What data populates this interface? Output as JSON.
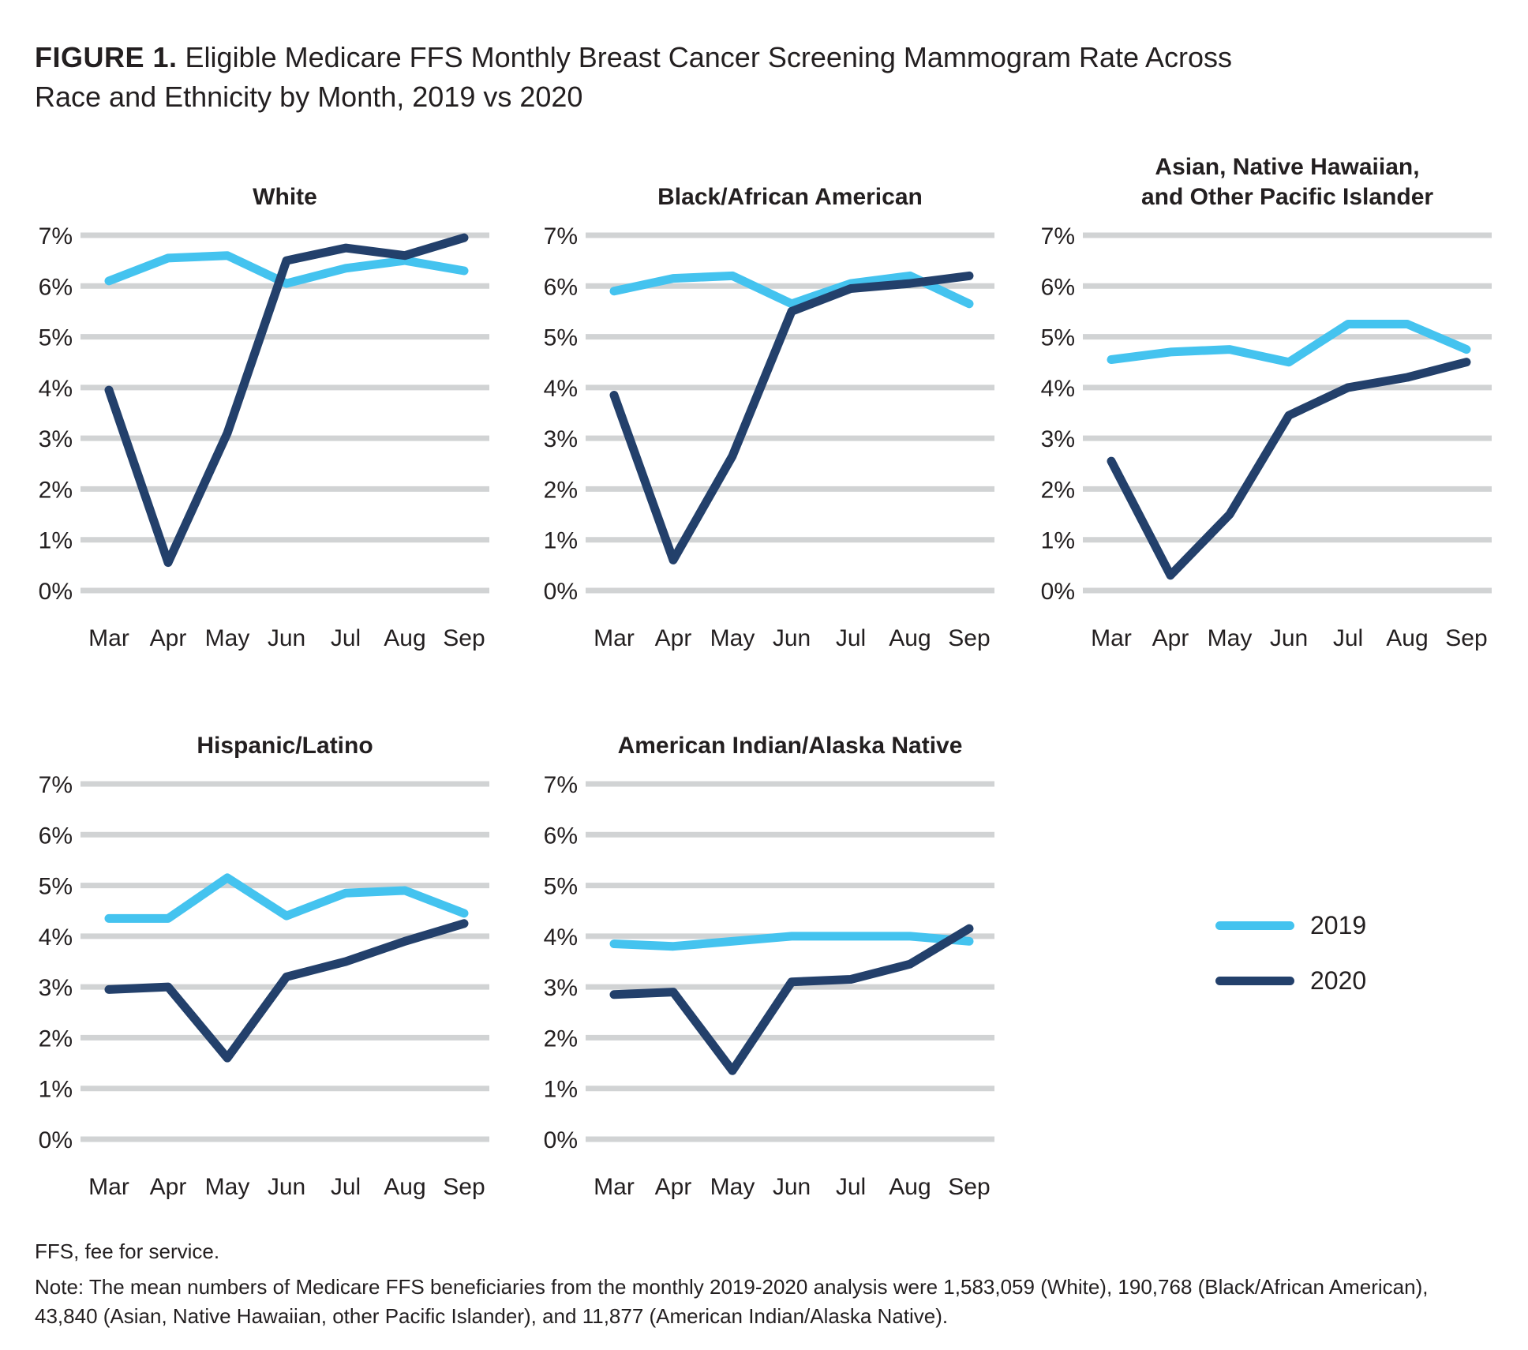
{
  "figure": {
    "label": "FIGURE 1.",
    "title_rest": " Eligible Medicare FFS Monthly Breast Cancer Screening Mammogram Rate Across Race and Ethnicity by Month, 2019 vs 2020"
  },
  "colors": {
    "2019": "#44C3EF",
    "2020": "#23406B",
    "grid": "#D1D3D4",
    "text": "#231F20"
  },
  "legend": {
    "position": "bottom-right",
    "items": [
      {
        "label": "2019",
        "color": "#44C3EF"
      },
      {
        "label": "2020",
        "color": "#23406B"
      }
    ]
  },
  "chart_data": [
    {
      "type": "line",
      "title": "White",
      "categories": [
        "Mar",
        "Apr",
        "May",
        "Jun",
        "Jul",
        "Aug",
        "Sep"
      ],
      "ytick_labels": [
        "0%",
        "1%",
        "2%",
        "3%",
        "4%",
        "5%",
        "6%",
        "7%"
      ],
      "ylim": [
        0,
        7
      ],
      "grid": "horizontal",
      "legend_position": "shared-bottom-right",
      "series": [
        {
          "name": "2019",
          "values": [
            6.1,
            6.55,
            6.6,
            6.05,
            6.35,
            6.5,
            6.3
          ]
        },
        {
          "name": "2020",
          "values": [
            3.95,
            0.55,
            3.1,
            6.5,
            6.75,
            6.6,
            6.95
          ]
        }
      ]
    },
    {
      "type": "line",
      "title": "Black/African American",
      "categories": [
        "Mar",
        "Apr",
        "May",
        "Jun",
        "Jul",
        "Aug",
        "Sep"
      ],
      "ytick_labels": [
        "0%",
        "1%",
        "2%",
        "3%",
        "4%",
        "5%",
        "6%",
        "7%"
      ],
      "ylim": [
        0,
        7
      ],
      "grid": "horizontal",
      "legend_position": "shared-bottom-right",
      "series": [
        {
          "name": "2019",
          "values": [
            5.9,
            6.15,
            6.2,
            5.65,
            6.05,
            6.2,
            5.65
          ]
        },
        {
          "name": "2020",
          "values": [
            3.85,
            0.6,
            2.65,
            5.5,
            5.95,
            6.05,
            6.2
          ]
        }
      ]
    },
    {
      "type": "line",
      "title": "Asian, Native Hawaiian,\nand Other Pacific Islander",
      "categories": [
        "Mar",
        "Apr",
        "May",
        "Jun",
        "Jul",
        "Aug",
        "Sep"
      ],
      "ytick_labels": [
        "0%",
        "1%",
        "2%",
        "3%",
        "4%",
        "5%",
        "6%",
        "7%"
      ],
      "ylim": [
        0,
        7
      ],
      "grid": "horizontal",
      "legend_position": "shared-bottom-right",
      "series": [
        {
          "name": "2019",
          "values": [
            4.55,
            4.7,
            4.75,
            4.5,
            5.25,
            5.25,
            4.75
          ]
        },
        {
          "name": "2020",
          "values": [
            2.55,
            0.3,
            1.5,
            3.45,
            4.0,
            4.2,
            4.5
          ]
        }
      ]
    },
    {
      "type": "line",
      "title": "Hispanic/Latino",
      "categories": [
        "Mar",
        "Apr",
        "May",
        "Jun",
        "Jul",
        "Aug",
        "Sep"
      ],
      "ytick_labels": [
        "0%",
        "1%",
        "2%",
        "3%",
        "4%",
        "5%",
        "6%",
        "7%"
      ],
      "ylim": [
        0,
        7
      ],
      "grid": "horizontal",
      "legend_position": "shared-bottom-right",
      "series": [
        {
          "name": "2019",
          "values": [
            4.35,
            4.35,
            5.15,
            4.4,
            4.85,
            4.9,
            4.45
          ]
        },
        {
          "name": "2020",
          "values": [
            2.95,
            3.0,
            1.6,
            3.2,
            3.5,
            3.9,
            4.25
          ]
        }
      ]
    },
    {
      "type": "line",
      "title": "American Indian/Alaska Native",
      "categories": [
        "Mar",
        "Apr",
        "May",
        "Jun",
        "Jul",
        "Aug",
        "Sep"
      ],
      "ytick_labels": [
        "0%",
        "1%",
        "2%",
        "3%",
        "4%",
        "5%",
        "6%",
        "7%"
      ],
      "ylim": [
        0,
        7
      ],
      "grid": "horizontal",
      "legend_position": "shared-bottom-right",
      "series": [
        {
          "name": "2019",
          "values": [
            3.85,
            3.8,
            3.9,
            4.0,
            4.0,
            4.0,
            3.9
          ]
        },
        {
          "name": "2020",
          "values": [
            2.85,
            2.9,
            1.35,
            3.1,
            3.15,
            3.45,
            4.15
          ]
        }
      ]
    }
  ],
  "footnotes": {
    "abbrev": "FFS, fee for service.",
    "note": "Note: The mean numbers of Medicare FFS beneficiaries from the monthly 2019-2020 analysis were 1,583,059 (White), 190,768 (Black/African American), 43,840 (Asian, Native Hawaiian, other Pacific Islander), and 11,877 (American Indian/Alaska Native)."
  }
}
